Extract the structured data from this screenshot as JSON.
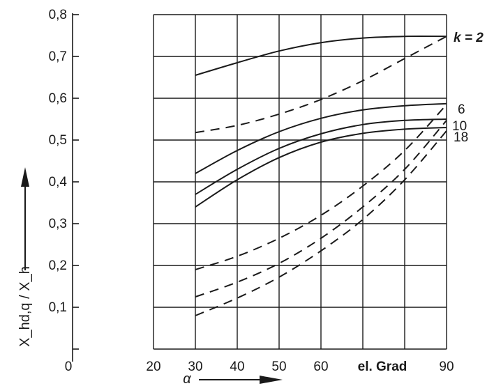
{
  "chart_data": {
    "type": "line",
    "xlabel": "α",
    "ylabel": "X_hd,q / X_h",
    "x_unit_label": "el. Grad",
    "xlim": [
      20,
      90
    ],
    "ylim": [
      0,
      0.8
    ],
    "grid": true,
    "x_ticks": [
      "20",
      "30",
      "40",
      "50",
      "60",
      "",
      "90"
    ],
    "y_ticks": [
      "0,1",
      "0,2",
      "0,3",
      "0,4",
      "0,5",
      "0,6",
      "0,7",
      "0,8"
    ],
    "y_zero_label": "0",
    "k_label": "k = 2",
    "curve_labels": [
      "6",
      "10",
      "18"
    ],
    "series": [
      {
        "name": "k = 2",
        "style": "solid",
        "x": [
          30,
          40,
          50,
          60,
          70,
          80,
          90
        ],
        "y": [
          0.655,
          0.685,
          0.713,
          0.733,
          0.744,
          0.748,
          0.748
        ]
      },
      {
        "name": "6",
        "style": "solid",
        "x": [
          30,
          40,
          50,
          60,
          70,
          80,
          90
        ],
        "y": [
          0.42,
          0.475,
          0.52,
          0.552,
          0.572,
          0.582,
          0.587
        ]
      },
      {
        "name": "10",
        "style": "solid",
        "x": [
          30,
          40,
          50,
          60,
          70,
          80,
          90
        ],
        "y": [
          0.37,
          0.43,
          0.48,
          0.515,
          0.537,
          0.547,
          0.55
        ]
      },
      {
        "name": "18",
        "style": "solid",
        "x": [
          30,
          40,
          50,
          60,
          70,
          80,
          90
        ],
        "y": [
          0.34,
          0.405,
          0.458,
          0.495,
          0.516,
          0.526,
          0.53
        ]
      },
      {
        "name": "k = 2",
        "style": "dashed",
        "x": [
          30,
          40,
          50,
          60,
          70,
          80,
          90
        ],
        "y": [
          0.518,
          0.535,
          0.562,
          0.597,
          0.642,
          0.695,
          0.748
        ]
      },
      {
        "name": "6",
        "style": "dashed",
        "x": [
          30,
          40,
          50,
          60,
          70,
          80,
          90
        ],
        "y": [
          0.19,
          0.222,
          0.265,
          0.32,
          0.39,
          0.475,
          0.585
        ]
      },
      {
        "name": "10",
        "style": "dashed",
        "x": [
          30,
          40,
          50,
          60,
          70,
          80,
          90
        ],
        "y": [
          0.125,
          0.16,
          0.205,
          0.265,
          0.34,
          0.43,
          0.547
        ]
      },
      {
        "name": "18",
        "style": "dashed",
        "x": [
          30,
          40,
          50,
          60,
          70,
          80,
          90
        ],
        "y": [
          0.08,
          0.122,
          0.172,
          0.235,
          0.31,
          0.405,
          0.522
        ]
      }
    ]
  }
}
